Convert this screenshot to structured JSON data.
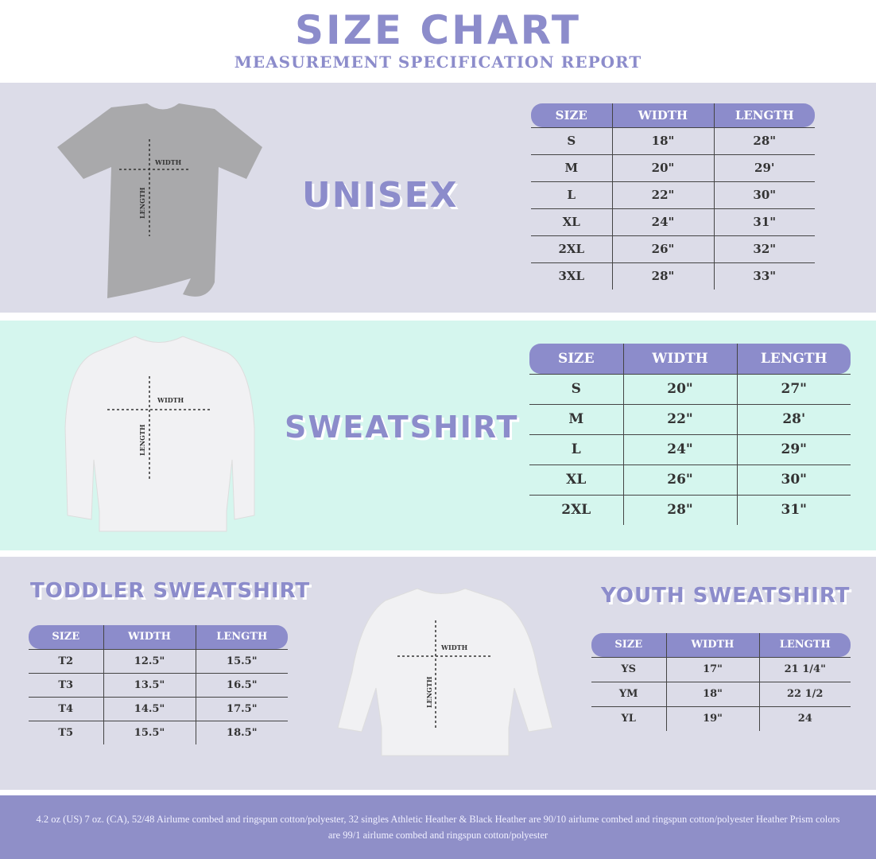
{
  "header": {
    "title": "SIZE CHART",
    "subtitle": "MEASUREMENT SPECIFICATION REPORT"
  },
  "colors": {
    "accent": "#8c8ccb",
    "section_gray": "#dcdce8",
    "section_mint": "#d5f6ee",
    "footer": "#8f8fc8"
  },
  "diagram_labels": {
    "width": "WIDTH",
    "length": "LENGTH"
  },
  "unisex": {
    "title": "UNISEX",
    "headers": [
      "SIZE",
      "WIDTH",
      "LENGTH"
    ],
    "rows": [
      [
        "S",
        "18\"",
        "28\""
      ],
      [
        "M",
        "20\"",
        "29'"
      ],
      [
        "L",
        "22\"",
        "30\""
      ],
      [
        "XL",
        "24\"",
        "31\""
      ],
      [
        "2XL",
        "26\"",
        "32\""
      ],
      [
        "3XL",
        "28\"",
        "33\""
      ]
    ]
  },
  "sweatshirt": {
    "title": "SWEATSHIRT",
    "headers": [
      "SIZE",
      "WIDTH",
      "LENGTH"
    ],
    "rows": [
      [
        "S",
        "20\"",
        "27\""
      ],
      [
        "M",
        "22\"",
        "28'"
      ],
      [
        "L",
        "24\"",
        "29\""
      ],
      [
        "XL",
        "26\"",
        "30\""
      ],
      [
        "2XL",
        "28\"",
        "31\""
      ]
    ]
  },
  "toddler": {
    "title": "TODDLER SWEATSHIRT",
    "headers": [
      "SIZE",
      "WIDTH",
      "LENGTH"
    ],
    "rows": [
      [
        "T2",
        "12.5\"",
        "15.5\""
      ],
      [
        "T3",
        "13.5\"",
        "16.5\""
      ],
      [
        "T4",
        "14.5\"",
        "17.5\""
      ],
      [
        "T5",
        "15.5\"",
        "18.5\""
      ]
    ]
  },
  "youth": {
    "title": "YOUTH SWEATSHIRT",
    "headers": [
      "SIZE",
      "WIDTH",
      "LENGTH"
    ],
    "rows": [
      [
        "YS",
        "17\"",
        "21 1/4\""
      ],
      [
        "YM",
        "18\"",
        "22 1/2"
      ],
      [
        "YL",
        "19\"",
        "24"
      ]
    ]
  },
  "footer": {
    "text": "4.2 oz (US) 7 oz. (CA), 52/48 Airlume combed and ringspun cotton/polyester, 32 singles Athletic Heather & Black Heather are 90/10 airlume combed and ringspun cotton/polyester Heather Prism colors are 99/1 airlume combed and ringspun cotton/polyester"
  }
}
